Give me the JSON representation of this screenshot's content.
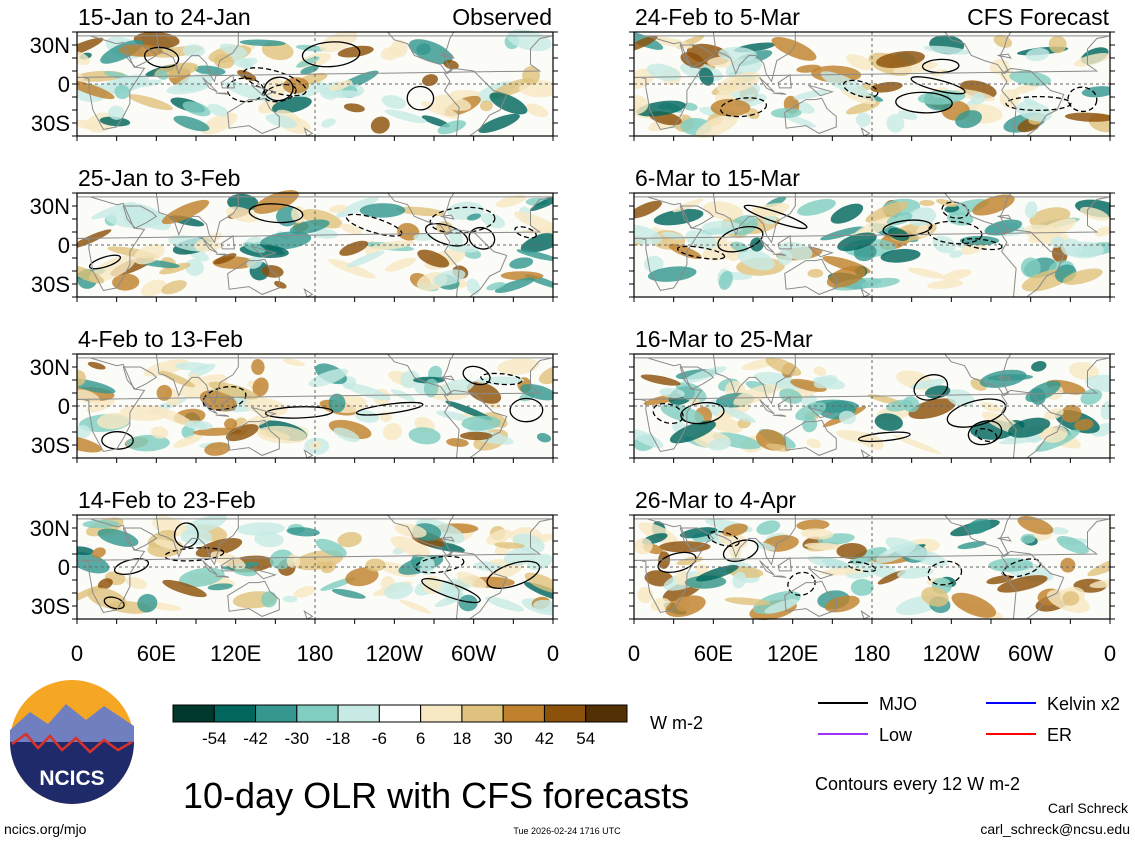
{
  "chart_data": {
    "type": "heatmap",
    "title": "10-day OLR with CFS forecasts",
    "variable": "OLR anomaly",
    "units": "W m-2",
    "contour_note": "Contours every 12 W m-2",
    "colorbar": {
      "levels": [
        -54,
        -42,
        -30,
        -18,
        -6,
        6,
        18,
        30,
        42,
        54
      ],
      "labels": [
        "-54",
        "-42",
        "-30",
        "-18",
        "-6",
        "6",
        "18",
        "30",
        "42",
        "54"
      ],
      "colors": [
        "#01382e",
        "#01665e",
        "#35978f",
        "#80cdc1",
        "#c7eae5",
        "#ffffff",
        "#f6e8c3",
        "#dfc27d",
        "#bf812d",
        "#8c510a",
        "#543005"
      ]
    },
    "lat_labels": [
      "30N",
      "0",
      "30S"
    ],
    "lon_labels": [
      "0",
      "60E",
      "120E",
      "180",
      "120W",
      "60W",
      "0"
    ],
    "legend": [
      {
        "label": "MJO",
        "color": "#000000"
      },
      {
        "label": "Kelvin x2",
        "color": "#0000ff"
      },
      {
        "label": "Low",
        "color": "#9b30ff"
      },
      {
        "label": "ER",
        "color": "#ff0000"
      }
    ],
    "columns": [
      {
        "header": "Observed",
        "panels": [
          {
            "period": "15-Jan to 24-Jan"
          },
          {
            "period": "25-Jan to 3-Feb"
          },
          {
            "period": "4-Feb to 13-Feb"
          },
          {
            "period": "14-Feb to 23-Feb"
          }
        ]
      },
      {
        "header": "CFS Forecast",
        "panels": [
          {
            "period": "24-Feb to 5-Mar"
          },
          {
            "period": "6-Mar to 15-Mar"
          },
          {
            "period": "16-Mar to 25-Mar"
          },
          {
            "period": "26-Mar to 4-Apr"
          }
        ]
      }
    ]
  },
  "logo": {
    "text": "NCICS"
  },
  "footer": {
    "url": "ncics.org/mjo",
    "timestamp": "Tue 2026-02-24 1716 UTC",
    "author": "Carl Schreck",
    "email": "carl_schreck@ncsu.edu"
  }
}
